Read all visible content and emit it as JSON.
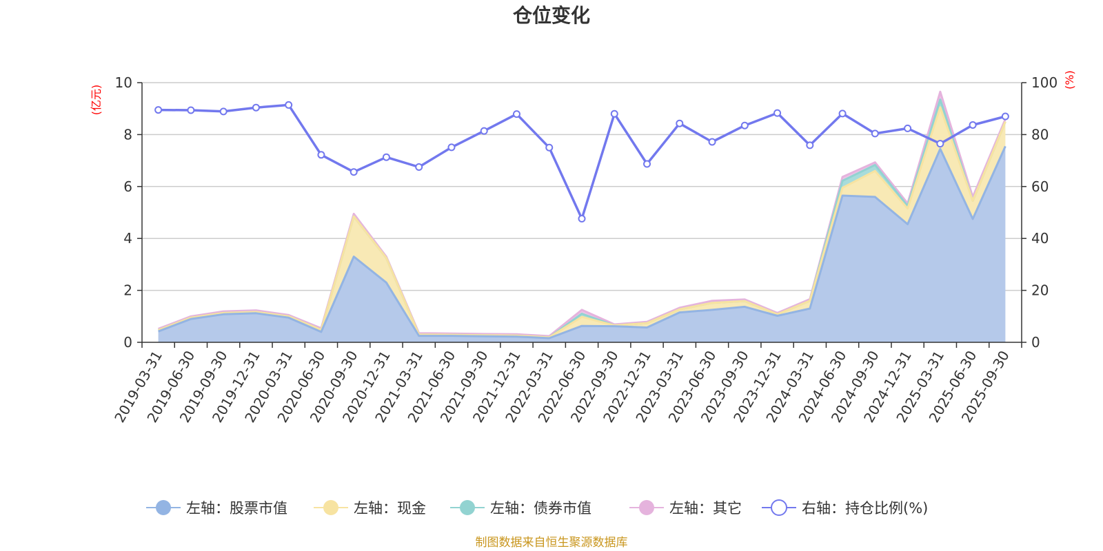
{
  "chart_data": {
    "type": "area",
    "title": "仓位变化",
    "source": "制图数据来自恒生聚源数据库",
    "left_axis_unit": "(亿元)",
    "right_axis_unit": "(%)",
    "left_axis_ticks": [
      "0",
      "2",
      "4",
      "6",
      "8",
      "10"
    ],
    "right_axis_ticks": [
      "0",
      "20",
      "40",
      "60",
      "80",
      "100"
    ],
    "ylim_left": [
      0,
      10
    ],
    "ylim_right": [
      0,
      100
    ],
    "grid": true,
    "legend_position": "bottom",
    "categories": [
      "2019-03-31",
      "2019-06-30",
      "2019-09-30",
      "2019-12-31",
      "2020-03-31",
      "2020-06-30",
      "2020-09-30",
      "2020-12-31",
      "2021-03-31",
      "2021-06-30",
      "2021-09-30",
      "2021-12-31",
      "2022-03-31",
      "2022-06-30",
      "2022-09-30",
      "2022-12-31",
      "2023-03-31",
      "2023-06-30",
      "2023-09-30",
      "2023-12-31",
      "2024-03-31",
      "2024-06-30",
      "2024-09-30",
      "2024-12-31",
      "2025-03-31",
      "2025-06-30",
      "2025-09-30"
    ],
    "stacked_series": [
      {
        "name": "左轴：股票市值",
        "axis": "left",
        "color": "#93b4e3",
        "fill": "#b5c9ea",
        "values": [
          0.42,
          0.9,
          1.08,
          1.12,
          0.95,
          0.4,
          3.3,
          2.3,
          0.25,
          0.25,
          0.23,
          0.22,
          0.16,
          0.63,
          0.62,
          0.57,
          1.15,
          1.25,
          1.37,
          1.02,
          1.3,
          5.65,
          5.6,
          4.55,
          7.45,
          4.75,
          7.55
        ]
      },
      {
        "name": "左轴：现金",
        "axis": "left",
        "color": "#f7e3a1",
        "fill": "#f8e9b5",
        "values": [
          0.05,
          0.05,
          0.05,
          0.05,
          0.05,
          0.08,
          1.55,
          0.95,
          0.05,
          0.04,
          0.04,
          0.04,
          0.03,
          0.35,
          0.03,
          0.17,
          0.12,
          0.27,
          0.22,
          0.06,
          0.3,
          0.3,
          1.0,
          0.6,
          1.6,
          0.7,
          0.95
        ]
      },
      {
        "name": "左轴：债券市值",
        "axis": "left",
        "color": "#92d3d1",
        "fill": "#a8dcdb",
        "values": [
          0,
          0,
          0,
          0,
          0,
          0,
          0,
          0,
          0,
          0,
          0,
          0,
          0,
          0.12,
          0,
          0,
          0,
          0,
          0,
          0,
          0,
          0.27,
          0.23,
          0.1,
          0.3,
          0,
          0
        ]
      },
      {
        "name": "左轴：其它",
        "axis": "left",
        "color": "#e5b3dd",
        "fill": "#ecc4e6",
        "values": [
          0.05,
          0.05,
          0.06,
          0.06,
          0.05,
          0.06,
          0.1,
          0.05,
          0.05,
          0.05,
          0.05,
          0.05,
          0.05,
          0.15,
          0.04,
          0.05,
          0.06,
          0.08,
          0.06,
          0.05,
          0.06,
          0.15,
          0.1,
          0.1,
          0.3,
          0.15,
          0.1
        ]
      }
    ],
    "line_series": {
      "name": "右轴：持仓比例(%)",
      "axis": "right",
      "color": "#7278ee",
      "values": [
        89.5,
        89.4,
        88.9,
        90.4,
        91.4,
        72.2,
        65.6,
        71.3,
        67.5,
        75.1,
        81.4,
        87.9,
        75.0,
        47.6,
        88.0,
        68.7,
        84.3,
        77.2,
        83.5,
        88.3,
        75.9,
        88.1,
        80.4,
        82.4,
        76.5,
        83.7,
        87.0
      ]
    }
  }
}
